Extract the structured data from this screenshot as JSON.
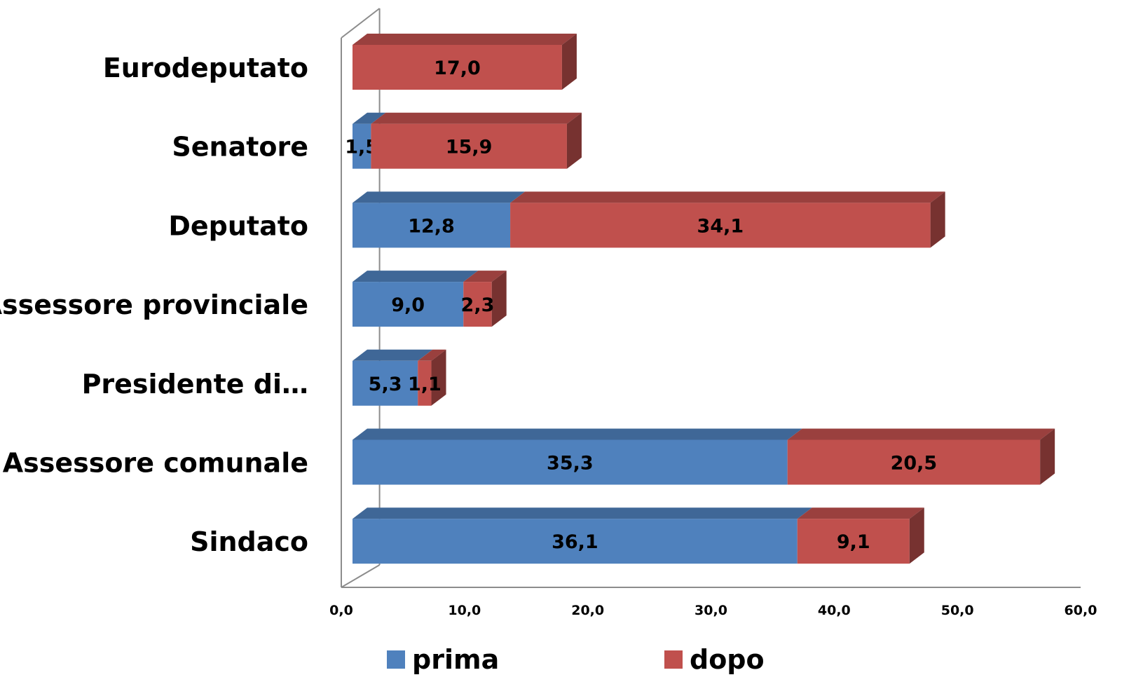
{
  "chart_data": {
    "type": "bar",
    "orientation": "horizontal",
    "stacked": true,
    "style": "3d",
    "categories": [
      "Eurodeputato",
      "Senatore",
      "Deputato",
      "Assessore provinciale",
      "Presidente di…",
      "Assessore comunale",
      "Sindaco"
    ],
    "series": [
      {
        "name": "prima",
        "color": "#4f81bd",
        "values": [
          0,
          1.5,
          12.8,
          9.0,
          5.3,
          35.3,
          36.1
        ],
        "labels": [
          "",
          "1,5",
          "12,8",
          "9,0",
          "5,3",
          "35,3",
          "36,1"
        ]
      },
      {
        "name": "dopo",
        "color": "#c0504d",
        "values": [
          17.0,
          15.9,
          34.1,
          2.3,
          1.1,
          20.5,
          9.1
        ],
        "labels": [
          "17,0",
          "15,9",
          "34,1",
          "2,3",
          "1,1",
          "20,5",
          "9,1"
        ]
      }
    ],
    "xlim": [
      0,
      60
    ],
    "x_ticks": [
      "0,0",
      "10,0",
      "20,0",
      "30,0",
      "40,0",
      "50,0",
      "60,0"
    ],
    "legend_position": "bottom",
    "grid": false
  }
}
